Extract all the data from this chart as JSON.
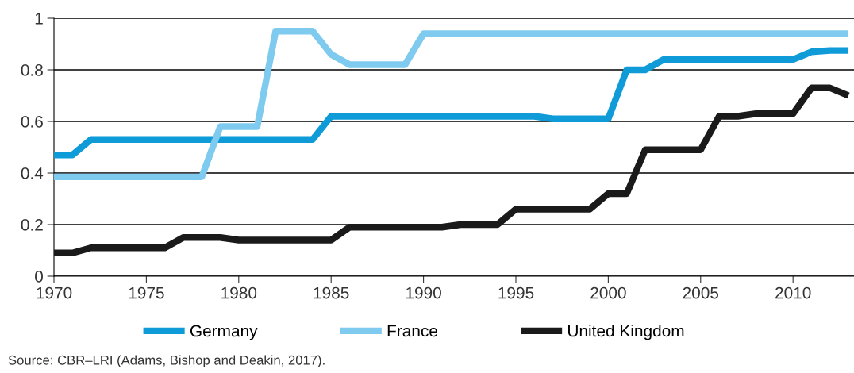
{
  "chart_data": {
    "type": "line",
    "x": [
      1970,
      1971,
      1972,
      1973,
      1974,
      1975,
      1976,
      1977,
      1978,
      1979,
      1980,
      1981,
      1982,
      1983,
      1984,
      1985,
      1986,
      1987,
      1988,
      1989,
      1990,
      1991,
      1992,
      1993,
      1994,
      1995,
      1996,
      1997,
      1998,
      1999,
      2000,
      2001,
      2002,
      2003,
      2004,
      2005,
      2006,
      2007,
      2008,
      2009,
      2010,
      2011,
      2012,
      2013
    ],
    "series": [
      {
        "name": "Germany",
        "color": "#0f9ad8",
        "values": [
          0.47,
          0.47,
          0.53,
          0.53,
          0.53,
          0.53,
          0.53,
          0.53,
          0.53,
          0.53,
          0.53,
          0.53,
          0.53,
          0.53,
          0.53,
          0.62,
          0.62,
          0.62,
          0.62,
          0.62,
          0.62,
          0.62,
          0.62,
          0.62,
          0.62,
          0.62,
          0.62,
          0.61,
          0.61,
          0.61,
          0.61,
          0.8,
          0.8,
          0.84,
          0.84,
          0.84,
          0.84,
          0.84,
          0.84,
          0.84,
          0.84,
          0.87,
          0.875,
          0.875
        ]
      },
      {
        "name": "France",
        "color": "#7fcbef",
        "values": [
          0.385,
          0.385,
          0.385,
          0.385,
          0.385,
          0.385,
          0.385,
          0.385,
          0.385,
          0.58,
          0.58,
          0.58,
          0.95,
          0.95,
          0.95,
          0.86,
          0.82,
          0.82,
          0.82,
          0.82,
          0.94,
          0.94,
          0.94,
          0.94,
          0.94,
          0.94,
          0.94,
          0.94,
          0.94,
          0.94,
          0.94,
          0.94,
          0.94,
          0.94,
          0.94,
          0.94,
          0.94,
          0.94,
          0.94,
          0.94,
          0.94,
          0.94,
          0.94,
          0.94
        ]
      },
      {
        "name": "United Kingdom",
        "color": "#1a1a1a",
        "values": [
          0.09,
          0.09,
          0.11,
          0.11,
          0.11,
          0.11,
          0.11,
          0.15,
          0.15,
          0.15,
          0.14,
          0.14,
          0.14,
          0.14,
          0.14,
          0.14,
          0.19,
          0.19,
          0.19,
          0.19,
          0.19,
          0.19,
          0.2,
          0.2,
          0.2,
          0.26,
          0.26,
          0.26,
          0.26,
          0.26,
          0.32,
          0.32,
          0.49,
          0.49,
          0.49,
          0.49,
          0.62,
          0.62,
          0.63,
          0.63,
          0.63,
          0.73,
          0.73,
          0.7
        ]
      }
    ],
    "xlim": [
      1970,
      2013.3
    ],
    "xticks": [
      1970,
      1975,
      1980,
      1985,
      1990,
      1995,
      2000,
      2005,
      2010
    ],
    "ylim": [
      0,
      1
    ],
    "yticks": [
      0,
      0.2,
      0.4,
      0.6,
      0.8,
      1
    ],
    "grid": "y",
    "legend": "bottom",
    "marker": "none",
    "line_style": "solid",
    "annotations": [
      "Source: CBR–LRI (Adams, Bishop and Deakin, 2017)."
    ]
  }
}
